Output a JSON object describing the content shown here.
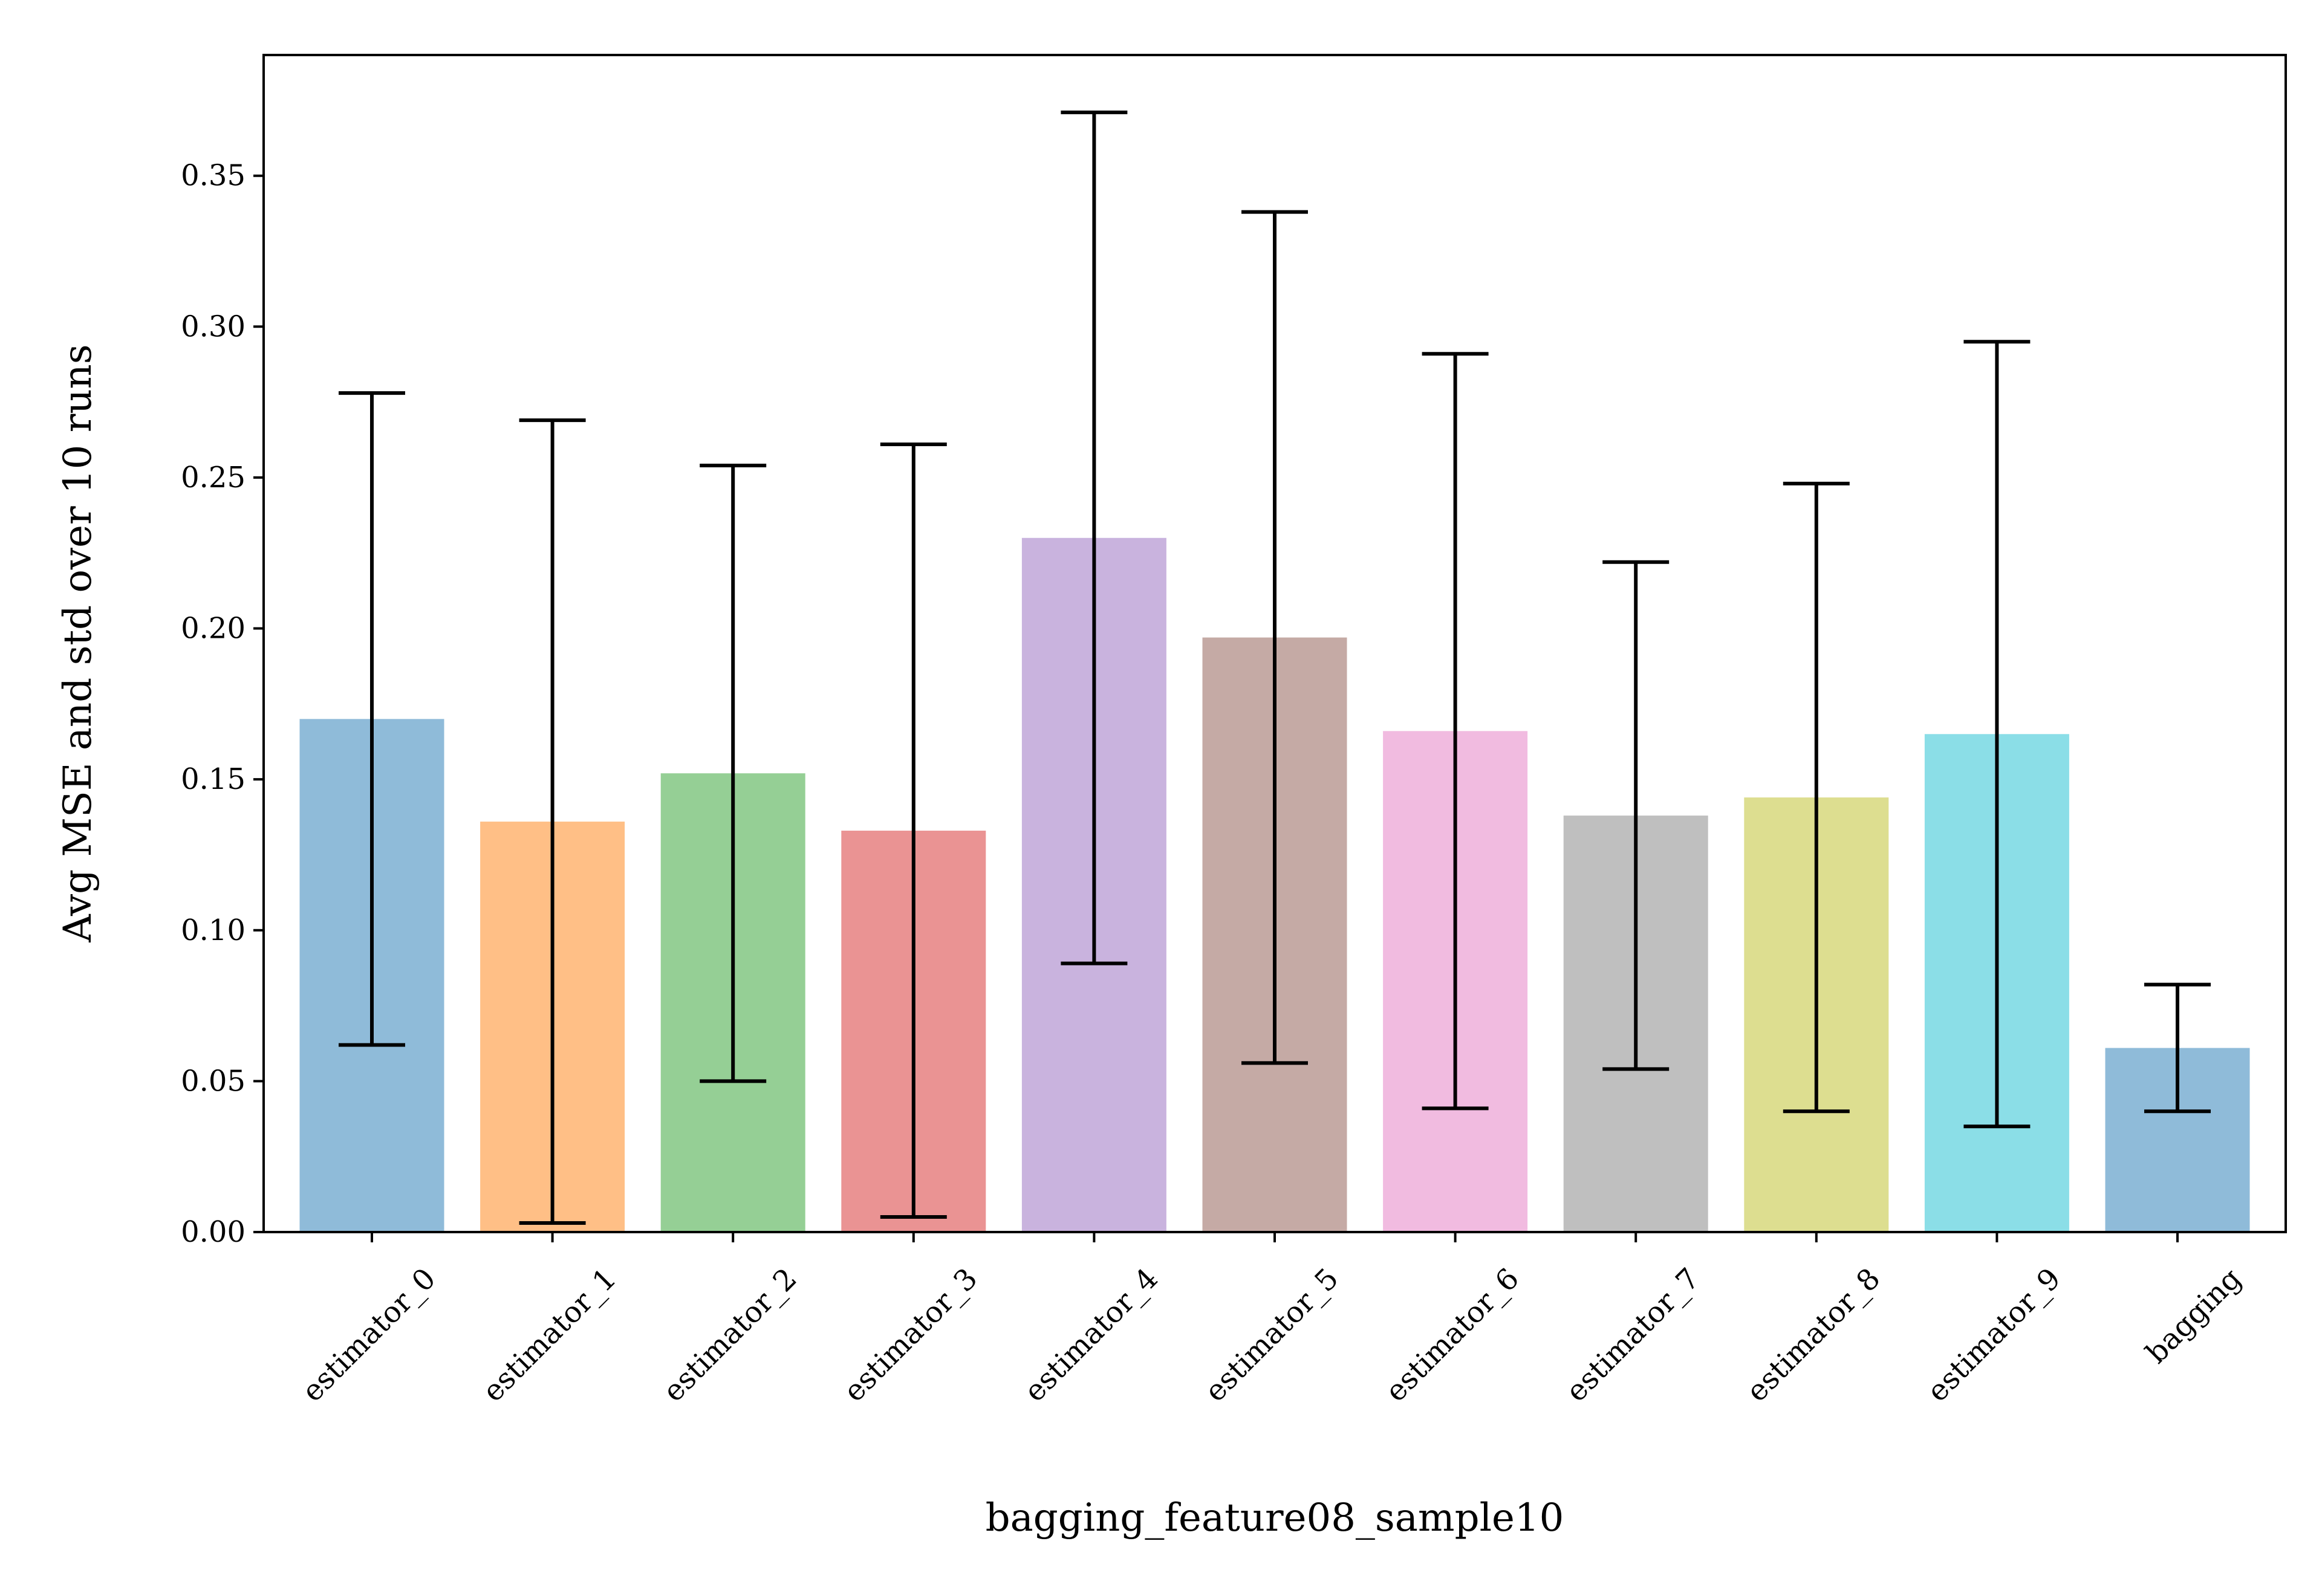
{
  "chart_data": {
    "type": "bar",
    "xlabel": "bagging_feature08_sample10",
    "ylabel": "Avg MSE and std over 10 runs",
    "ylim": [
      0,
      0.39
    ],
    "yticks": [
      "0.00",
      "0.05",
      "0.10",
      "0.15",
      "0.20",
      "0.25",
      "0.30",
      "0.35"
    ],
    "categories": [
      "estimator_0",
      "estimator_1",
      "estimator_2",
      "estimator_3",
      "estimator_4",
      "estimator_5",
      "estimator_6",
      "estimator_7",
      "estimator_8",
      "estimator_9",
      "bagging"
    ],
    "values": [
      0.17,
      0.136,
      0.152,
      0.133,
      0.23,
      0.197,
      0.166,
      0.138,
      0.144,
      0.165,
      0.061
    ],
    "std": [
      0.108,
      0.133,
      0.102,
      0.128,
      0.141,
      0.141,
      0.125,
      0.084,
      0.104,
      0.13,
      0.021
    ],
    "colors": [
      "#1f77b4",
      "#ff7f0e",
      "#2ca02c",
      "#d62728",
      "#9467bd",
      "#8c564b",
      "#e377c2",
      "#7f7f7f",
      "#bcbd22",
      "#17becf",
      "#1f77b4"
    ],
    "bar_alpha": 0.5,
    "grid": false,
    "legend": "none"
  }
}
